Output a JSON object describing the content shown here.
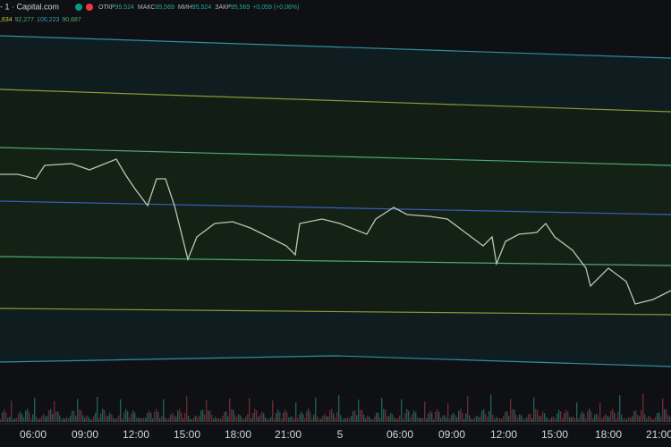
{
  "header": {
    "symbol": "- 1 · Capital.com",
    "ohlc": [
      {
        "label": "ОТКР",
        "value": "95,524"
      },
      {
        "label": "МАКС",
        "value": "95,569"
      },
      {
        "label": "МИН",
        "value": "95,524"
      },
      {
        "label": "ЗАКР",
        "value": "95,569"
      }
    ],
    "change": "+0,059 (+0,06%)"
  },
  "indicator": [
    ",634",
    "92,277",
    "100,223",
    "90,687"
  ],
  "time_axis": [
    "06:00",
    "09:00",
    "12:00",
    "15:00",
    "18:00",
    "21:00",
    "5",
    "06:00",
    "09:00",
    "12:00",
    "15:00",
    "18:00",
    "21:00"
  ]
}
